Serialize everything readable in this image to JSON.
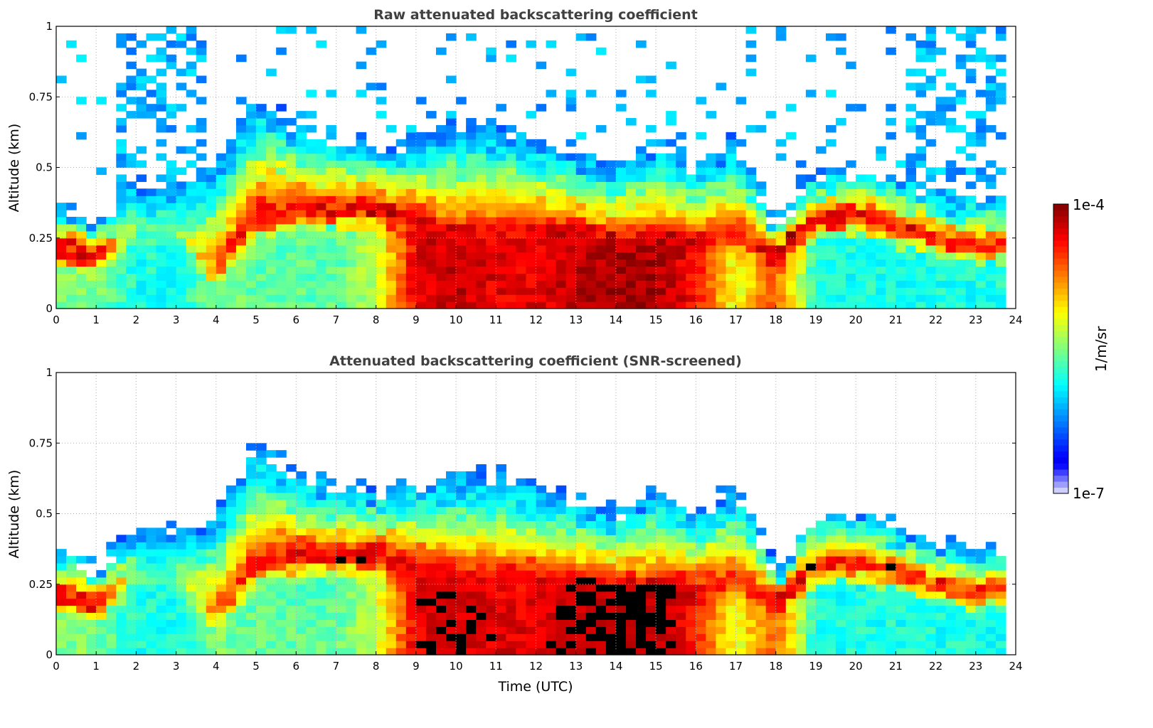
{
  "chart_data": [
    {
      "type": "heatmap",
      "title": "Raw attenuated backscattering coefficient",
      "xlabel": "",
      "ylabel": "Altitude (km)",
      "xlim": [
        0,
        24
      ],
      "ylim": [
        0,
        1
      ],
      "xticks": [
        "0",
        "1",
        "2",
        "3",
        "4",
        "5",
        "6",
        "7",
        "8",
        "9",
        "10",
        "11",
        "12",
        "13",
        "14",
        "15",
        "16",
        "17",
        "18",
        "19",
        "20",
        "21",
        "22",
        "23",
        "24"
      ],
      "yticks": [
        "0",
        "0.25",
        "0.5",
        "0.75",
        "1"
      ],
      "grid": true,
      "screened": false
    },
    {
      "type": "heatmap",
      "title": "Attenuated backscattering coefficient (SNR-screened)",
      "xlabel": "Time (UTC)",
      "ylabel": "Altitude (km)",
      "xlim": [
        0,
        24
      ],
      "ylim": [
        0,
        1
      ],
      "xticks": [
        "0",
        "1",
        "2",
        "3",
        "4",
        "5",
        "6",
        "7",
        "8",
        "9",
        "10",
        "11",
        "12",
        "13",
        "14",
        "15",
        "16",
        "17",
        "18",
        "19",
        "20",
        "21",
        "22",
        "23",
        "24"
      ],
      "yticks": [
        "0",
        "0.25",
        "0.5",
        "0.75",
        "1"
      ],
      "grid": true,
      "screened": true
    }
  ],
  "profile_estimates": {
    "hours": [
      0,
      1,
      2,
      3,
      4,
      5,
      6,
      7,
      8,
      9,
      10,
      11,
      12,
      13,
      14,
      15,
      16,
      17,
      18,
      19,
      20,
      21,
      22,
      23,
      24
    ],
    "layer_center_km": [
      0.22,
      0.18,
      0.3,
      0.3,
      0.15,
      0.32,
      0.35,
      0.35,
      0.36,
      0.33,
      0.28,
      0.3,
      0.3,
      0.28,
      0.25,
      0.25,
      0.25,
      0.28,
      0.2,
      0.32,
      0.33,
      0.3,
      0.25,
      0.22,
      0.25
    ],
    "layer_top_km": [
      0.38,
      0.3,
      0.45,
      0.45,
      0.5,
      0.75,
      0.65,
      0.6,
      0.58,
      0.6,
      0.65,
      0.65,
      0.6,
      0.55,
      0.5,
      0.6,
      0.5,
      0.6,
      0.3,
      0.48,
      0.5,
      0.45,
      0.4,
      0.38,
      0.38
    ],
    "layer_peak_log10": [
      -4.1,
      -4.1,
      -5.5,
      -5.6,
      -4.5,
      -4.2,
      -4.2,
      -4.2,
      -4.1,
      -4.3,
      -4.3,
      -4.4,
      -4.4,
      -4.2,
      -4.2,
      -4.2,
      -4.2,
      -4.4,
      -4.1,
      -4.2,
      -4.1,
      -4.2,
      -4.3,
      -4.3,
      -4.3
    ],
    "below_layer_log10": [
      -5.5,
      -5.5,
      -5.8,
      -5.8,
      -5.5,
      -5.6,
      -5.6,
      -5.6,
      -5.3,
      -4.3,
      -4.2,
      -4.3,
      -4.3,
      -4.2,
      -4.1,
      -4.1,
      -4.4,
      -5.2,
      -4.6,
      -5.8,
      -5.8,
      -5.8,
      -5.8,
      -5.8,
      -5.8
    ],
    "data_end_hour": 23.8
  },
  "colorbar": {
    "max_label": "1e-4",
    "min_label": "1e-7",
    "unit_label": "1/m/sr",
    "log10_range": [
      -7,
      -4
    ],
    "saturation_color": "#000000"
  }
}
